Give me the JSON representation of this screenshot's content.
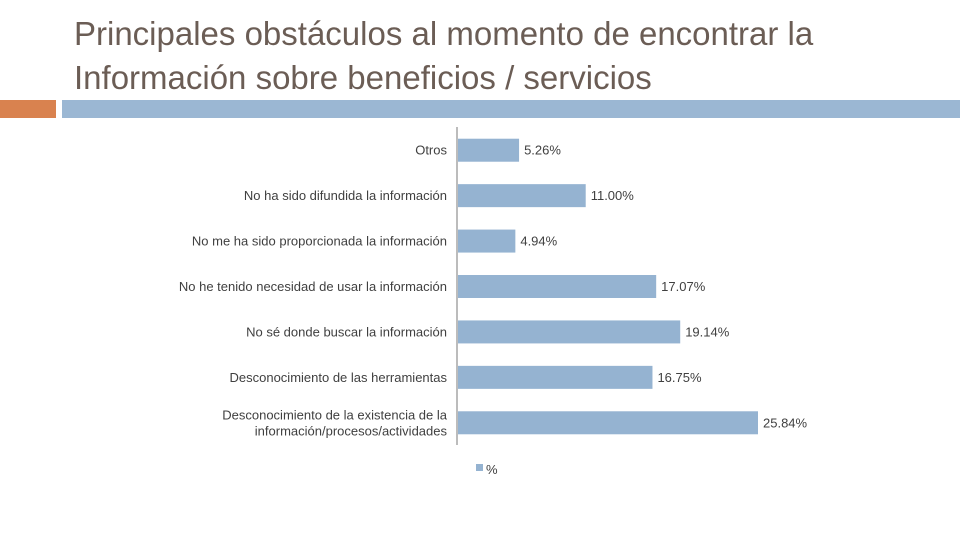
{
  "slide": {
    "title": "Principales obstáculos al momento de encontrar la Información sobre beneficios / servicios"
  },
  "colors": {
    "bar": "#95b3d1",
    "accent_orange": "#d9824f",
    "accent_blue": "#9bb7d3",
    "axis": "#a6a6a6",
    "text": "#404040",
    "title": "#6b5d55"
  },
  "chart_data": {
    "type": "bar",
    "orientation": "horizontal",
    "categories": [
      "Otros",
      "No ha sido difundida la información",
      "No me ha sido proporcionada la información",
      "No he tenido necesidad de usar la información",
      "No sé donde buscar la información",
      "Desconocimiento de las herramientas",
      "Desconocimiento de la existencia de la información/procesos/actividades"
    ],
    "category_lines": [
      [
        "Otros"
      ],
      [
        "No ha sido difundida la información"
      ],
      [
        "No me ha sido proporcionada la información"
      ],
      [
        "No he tenido necesidad de usar la información"
      ],
      [
        "No sé donde buscar la información"
      ],
      [
        "Desconocimiento de las herramientas"
      ],
      [
        "Desconocimiento de la existencia de la",
        "información/procesos/actividades"
      ]
    ],
    "series": [
      {
        "name": "%",
        "values": [
          5.26,
          11.0,
          4.94,
          17.07,
          19.14,
          16.75,
          25.84
        ],
        "labels": [
          "5.26%",
          "11.00%",
          "4.94%",
          "17.07%",
          "19.14%",
          "16.75%",
          "25.84%"
        ]
      }
    ],
    "xlim": [
      0,
      25.84
    ],
    "grid": false,
    "legend": "bottom",
    "title": "",
    "xlabel": "",
    "ylabel": ""
  }
}
